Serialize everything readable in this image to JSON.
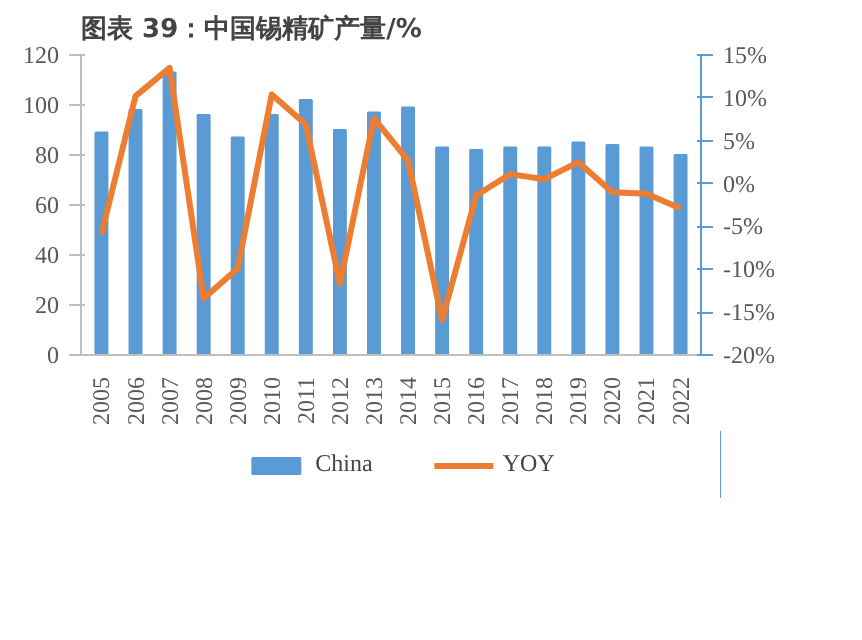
{
  "chart_data": {
    "type": "bar",
    "title": "图表 39：中国锡精矿产量/%",
    "categories": [
      "2005",
      "2006",
      "2007",
      "2008",
      "2009",
      "2010",
      "2011",
      "2012",
      "2013",
      "2014",
      "2015",
      "2016",
      "2017",
      "2018",
      "2019",
      "2020",
      "2021",
      "2022"
    ],
    "series": [
      {
        "name": "China",
        "color": "#5b9bd5",
        "values": [
          89,
          98,
          113,
          96,
          87,
          96,
          102,
          90,
          97,
          99,
          83,
          82,
          83,
          83,
          85,
          84,
          83,
          80
        ]
      },
      {
        "name": "YOY",
        "type": "line",
        "axis": "y2",
        "color": "#ed7d31",
        "values": [
          -5.9,
          10.2,
          13.5,
          -13.4,
          -9.9,
          10.4,
          6.9,
          -11.7,
          7.6,
          2.7,
          -15.9,
          -1.4,
          1.1,
          0.5,
          2.5,
          -1.0,
          -1.2,
          -2.9
        ]
      }
    ],
    "ylim": [
      0,
      120
    ],
    "yticks": [
      0,
      20,
      40,
      60,
      80,
      100,
      120
    ],
    "y2lim": [
      -20,
      15
    ],
    "y2ticks": [
      {
        "value": -20,
        "label": "-20%"
      },
      {
        "value": -15,
        "label": "-15%"
      },
      {
        "value": -10,
        "label": "-10%"
      },
      {
        "value": -5,
        "label": "-5%"
      },
      {
        "value": 0,
        "label": "0%"
      },
      {
        "value": 5,
        "label": "5%"
      },
      {
        "value": 10,
        "label": "10%"
      },
      {
        "value": 15,
        "label": "15%"
      }
    ],
    "grid": false,
    "legend": "bottom",
    "marker": "none",
    "line_style": "solid"
  }
}
